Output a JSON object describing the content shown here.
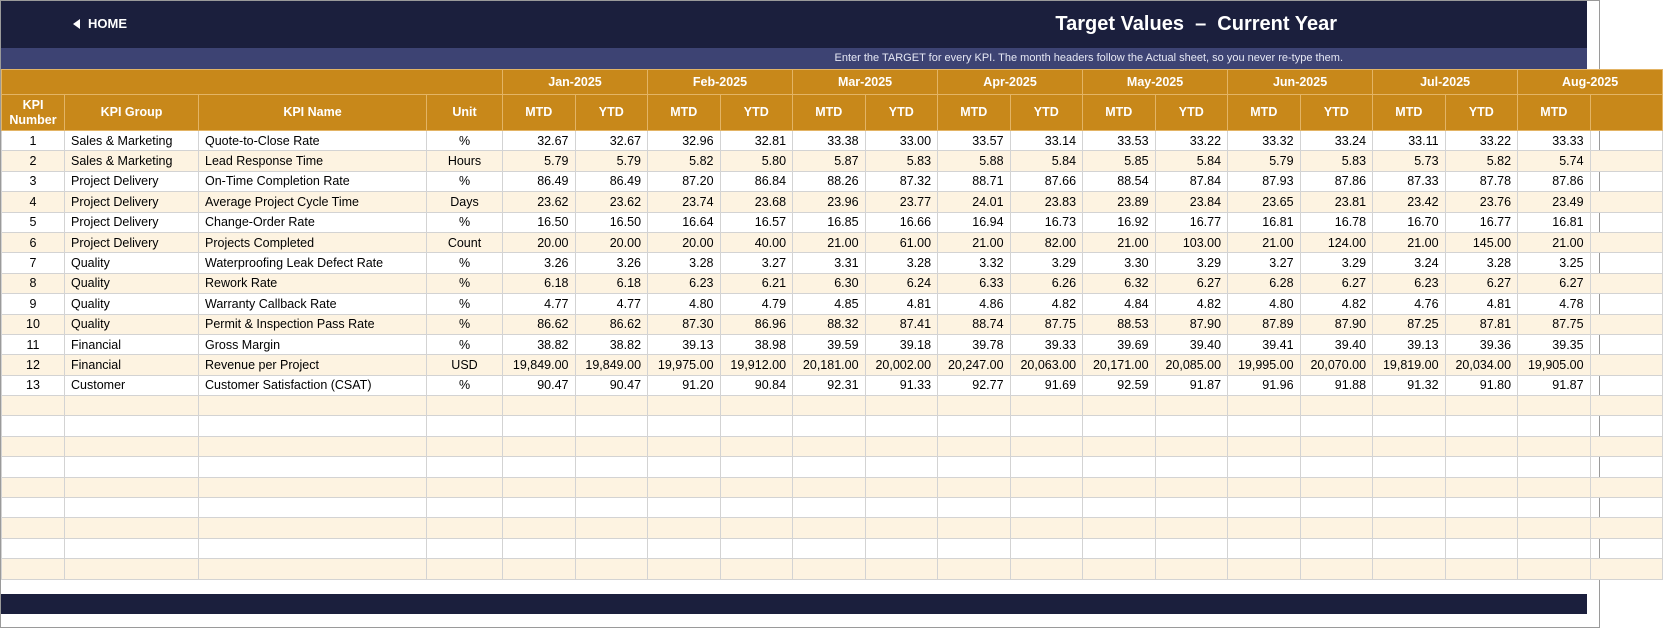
{
  "header": {
    "home": "HOME",
    "title": "Target Values  –  Current Year",
    "note": "Enter the TARGET for every KPI. The month headers follow the Actual sheet, so you never re-type them."
  },
  "table": {
    "columns": [
      "KPI Number",
      "KPI Group",
      "KPI Name",
      "Unit"
    ],
    "months": [
      {
        "label": "Jan-2025",
        "sub": [
          "MTD",
          "YTD"
        ]
      },
      {
        "label": "Feb-2025",
        "sub": [
          "MTD",
          "YTD"
        ]
      },
      {
        "label": "Mar-2025",
        "sub": [
          "MTD",
          "YTD"
        ]
      },
      {
        "label": "Apr-2025",
        "sub": [
          "MTD",
          "YTD"
        ]
      },
      {
        "label": "May-2025",
        "sub": [
          "MTD",
          "YTD"
        ]
      },
      {
        "label": "Jun-2025",
        "sub": [
          "MTD",
          "YTD"
        ]
      },
      {
        "label": "Jul-2025",
        "sub": [
          "MTD",
          "YTD"
        ]
      },
      {
        "label": "Aug-2025",
        "sub": [
          "MTD"
        ]
      }
    ],
    "rows": [
      [
        "1",
        "Sales & Marketing",
        "Quote-to-Close Rate",
        "%",
        "32.67",
        "32.67",
        "32.96",
        "32.81",
        "33.38",
        "33.00",
        "33.57",
        "33.14",
        "33.53",
        "33.22",
        "33.32",
        "33.24",
        "33.11",
        "33.22",
        "33.33"
      ],
      [
        "2",
        "Sales & Marketing",
        "Lead Response Time",
        "Hours",
        "5.79",
        "5.79",
        "5.82",
        "5.80",
        "5.87",
        "5.83",
        "5.88",
        "5.84",
        "5.85",
        "5.84",
        "5.79",
        "5.83",
        "5.73",
        "5.82",
        "5.74"
      ],
      [
        "3",
        "Project Delivery",
        "On-Time Completion Rate",
        "%",
        "86.49",
        "86.49",
        "87.20",
        "86.84",
        "88.26",
        "87.32",
        "88.71",
        "87.66",
        "88.54",
        "87.84",
        "87.93",
        "87.86",
        "87.33",
        "87.78",
        "87.86"
      ],
      [
        "4",
        "Project Delivery",
        "Average Project Cycle Time",
        "Days",
        "23.62",
        "23.62",
        "23.74",
        "23.68",
        "23.96",
        "23.77",
        "24.01",
        "23.83",
        "23.89",
        "23.84",
        "23.65",
        "23.81",
        "23.42",
        "23.76",
        "23.49"
      ],
      [
        "5",
        "Project Delivery",
        "Change-Order Rate",
        "%",
        "16.50",
        "16.50",
        "16.64",
        "16.57",
        "16.85",
        "16.66",
        "16.94",
        "16.73",
        "16.92",
        "16.77",
        "16.81",
        "16.78",
        "16.70",
        "16.77",
        "16.81"
      ],
      [
        "6",
        "Project Delivery",
        "Projects Completed",
        "Count",
        "20.00",
        "20.00",
        "20.00",
        "40.00",
        "21.00",
        "61.00",
        "21.00",
        "82.00",
        "21.00",
        "103.00",
        "21.00",
        "124.00",
        "21.00",
        "145.00",
        "21.00"
      ],
      [
        "7",
        "Quality",
        "Waterproofing Leak Defect Rate",
        "%",
        "3.26",
        "3.26",
        "3.28",
        "3.27",
        "3.31",
        "3.28",
        "3.32",
        "3.29",
        "3.30",
        "3.29",
        "3.27",
        "3.29",
        "3.24",
        "3.28",
        "3.25"
      ],
      [
        "8",
        "Quality",
        "Rework Rate",
        "%",
        "6.18",
        "6.18",
        "6.23",
        "6.21",
        "6.30",
        "6.24",
        "6.33",
        "6.26",
        "6.32",
        "6.27",
        "6.28",
        "6.27",
        "6.23",
        "6.27",
        "6.27"
      ],
      [
        "9",
        "Quality",
        "Warranty Callback Rate",
        "%",
        "4.77",
        "4.77",
        "4.80",
        "4.79",
        "4.85",
        "4.81",
        "4.86",
        "4.82",
        "4.84",
        "4.82",
        "4.80",
        "4.82",
        "4.76",
        "4.81",
        "4.78"
      ],
      [
        "10",
        "Quality",
        "Permit & Inspection Pass Rate",
        "%",
        "86.62",
        "86.62",
        "87.30",
        "86.96",
        "88.32",
        "87.41",
        "88.74",
        "87.75",
        "88.53",
        "87.90",
        "87.89",
        "87.90",
        "87.25",
        "87.81",
        "87.75"
      ],
      [
        "11",
        "Financial",
        "Gross Margin",
        "%",
        "38.82",
        "38.82",
        "39.13",
        "38.98",
        "39.59",
        "39.18",
        "39.78",
        "39.33",
        "39.69",
        "39.40",
        "39.41",
        "39.40",
        "39.13",
        "39.36",
        "39.35"
      ],
      [
        "12",
        "Financial",
        "Revenue per Project",
        "USD",
        "19,849.00",
        "19,849.00",
        "19,975.00",
        "19,912.00",
        "20,181.00",
        "20,002.00",
        "20,247.00",
        "20,063.00",
        "20,171.00",
        "20,085.00",
        "19,995.00",
        "20,070.00",
        "19,819.00",
        "20,034.00",
        "19,905.00"
      ],
      [
        "13",
        "Customer",
        "Customer Satisfaction (CSAT)",
        "%",
        "90.47",
        "90.47",
        "91.20",
        "90.84",
        "92.31",
        "91.33",
        "92.77",
        "91.69",
        "92.59",
        "91.87",
        "91.96",
        "91.88",
        "91.32",
        "91.80",
        "91.87"
      ]
    ]
  }
}
